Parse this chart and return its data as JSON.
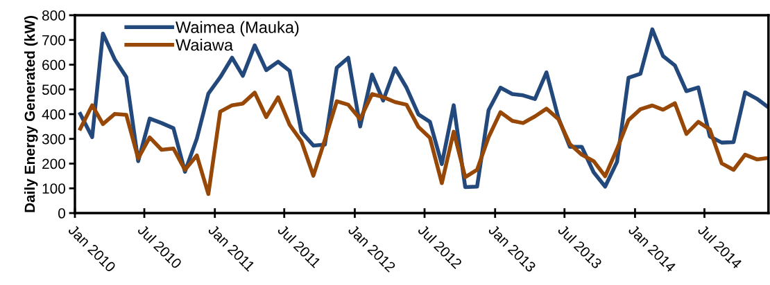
{
  "chart_data": {
    "type": "line",
    "ylabel": "Daily Energy Generated (kW)",
    "x": [
      "2010-01-15",
      "2010-02-15",
      "2010-03-15",
      "2010-04-15",
      "2010-05-15",
      "2010-06-15",
      "2010-07-15",
      "2010-08-15",
      "2010-09-15",
      "2010-10-15",
      "2010-11-15",
      "2010-12-15",
      "2011-01-15",
      "2011-02-15",
      "2011-03-15",
      "2011-04-15",
      "2011-05-15",
      "2011-06-15",
      "2011-07-15",
      "2011-08-15",
      "2011-09-15",
      "2011-10-15",
      "2011-11-15",
      "2011-12-15",
      "2012-01-15",
      "2012-02-15",
      "2012-03-15",
      "2012-04-15",
      "2012-05-15",
      "2012-06-15",
      "2012-07-15",
      "2012-08-15",
      "2012-09-15",
      "2012-10-15",
      "2012-11-15",
      "2012-12-15",
      "2013-01-15",
      "2013-02-15",
      "2013-03-15",
      "2013-04-15",
      "2013-05-15",
      "2013-06-15",
      "2013-07-15",
      "2013-08-15",
      "2013-09-15",
      "2013-10-15",
      "2013-11-15",
      "2013-12-15",
      "2014-01-15",
      "2014-02-15",
      "2014-03-15",
      "2014-04-15",
      "2014-05-15",
      "2014-06-15",
      "2014-07-15",
      "2014-08-15",
      "2014-09-15",
      "2014-10-15",
      "2014-11-15",
      "2014-12-15"
    ],
    "series": [
      {
        "name": "Waimea (Mauka)",
        "color": "#23497c",
        "values": [
          401,
          307,
          726,
          621,
          550,
          210,
          382,
          364,
          343,
          167,
          301,
          483,
          549,
          628,
          555,
          678,
          578,
          612,
          575,
          327,
          273,
          277,
          588,
          628,
          350,
          560,
          455,
          586,
          507,
          399,
          369,
          198,
          436,
          105,
          107,
          416,
          507,
          481,
          476,
          461,
          569,
          385,
          268,
          268,
          165,
          107,
          207,
          547,
          563,
          743,
          635,
          597,
          493,
          508,
          310,
          285,
          287,
          488,
          462,
          427
        ]
      },
      {
        "name": "Waiawa",
        "color": "#974706",
        "values": [
          341,
          436,
          360,
          401,
          397,
          221,
          306,
          256,
          261,
          175,
          233,
          77,
          410,
          436,
          443,
          487,
          388,
          468,
          357,
          290,
          151,
          296,
          452,
          438,
          380,
          481,
          469,
          449,
          438,
          348,
          304,
          121,
          329,
          145,
          175,
          307,
          408,
          373,
          364,
          391,
          422,
          380,
          279,
          236,
          210,
          149,
          259,
          376,
          420,
          435,
          418,
          444,
          320,
          369,
          338,
          201,
          175,
          236,
          217,
          223
        ]
      }
    ],
    "xlim": [
      "2010-01-01",
      "2014-12-15"
    ],
    "xticks": [
      {
        "value": "2010-01-01",
        "label": "Jan 2010"
      },
      {
        "value": "2010-07-01",
        "label": "Jul 2010"
      },
      {
        "value": "2011-01-01",
        "label": "Jan 2011"
      },
      {
        "value": "2011-07-01",
        "label": "Jul 2011"
      },
      {
        "value": "2012-01-01",
        "label": "Jan 2012"
      },
      {
        "value": "2012-07-01",
        "label": "Jul 2012"
      },
      {
        "value": "2013-01-01",
        "label": "Jan 2013"
      },
      {
        "value": "2013-07-01",
        "label": "Jul 2013"
      },
      {
        "value": "2014-01-01",
        "label": "Jan 2014"
      },
      {
        "value": "2014-07-01",
        "label": "Jul 2014"
      }
    ],
    "ylim": [
      0,
      800
    ],
    "yticks": [
      0,
      100,
      200,
      300,
      400,
      500,
      600,
      700,
      800
    ],
    "grid": false,
    "legend": "top left",
    "marker": "none",
    "line_style": "solid"
  }
}
